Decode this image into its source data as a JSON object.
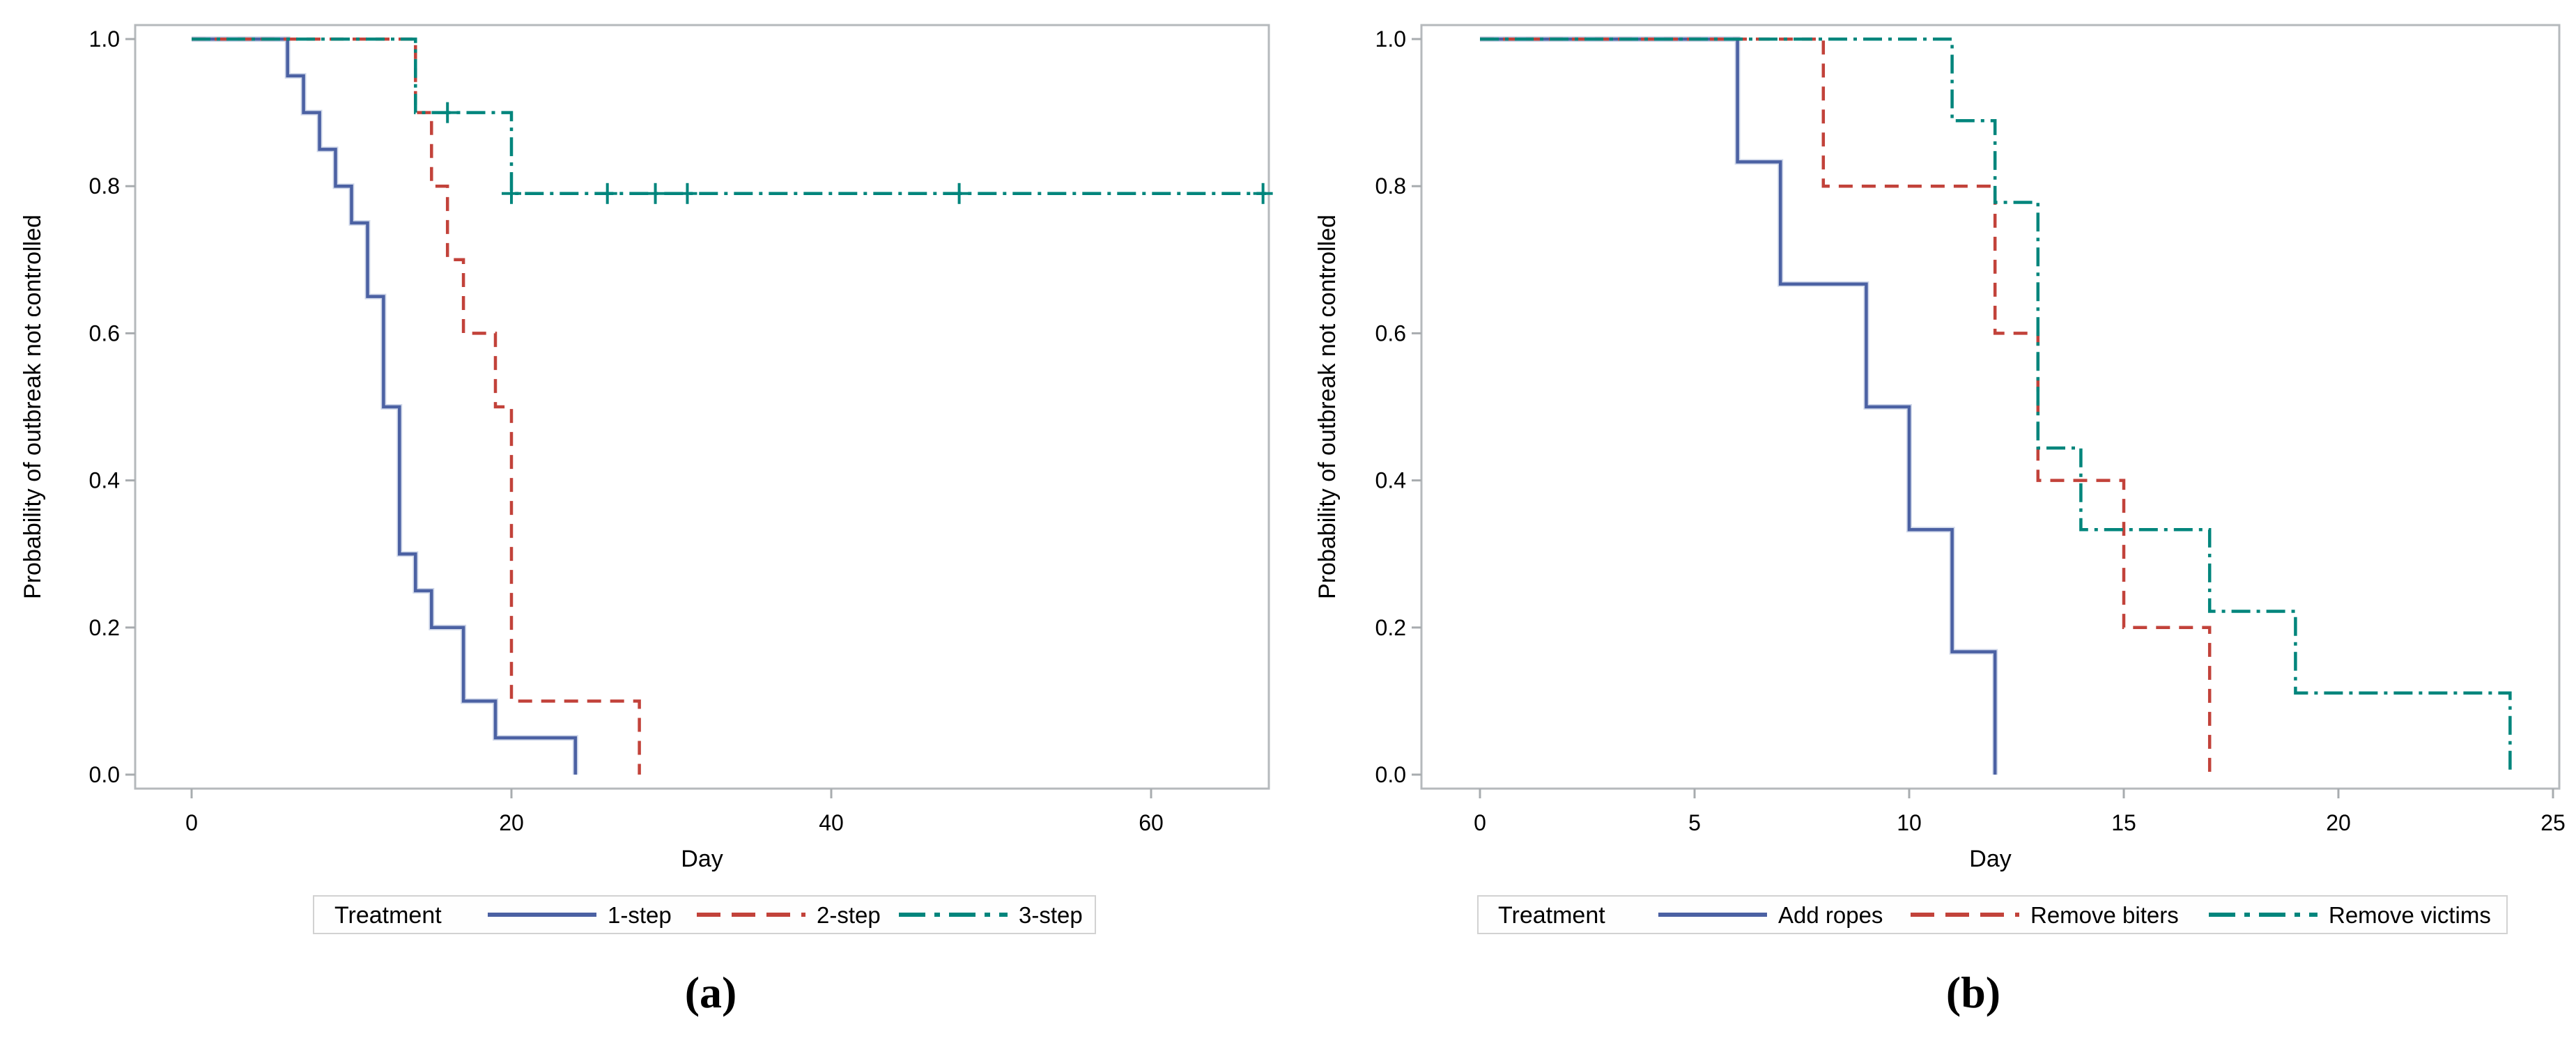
{
  "figure": {
    "description": "Kaplan-Meier curves of probability of outbreak not controlled by treatment",
    "background": "#ffffff",
    "frame_color": "#b5b9bc",
    "tick_color": "#a8acaf"
  },
  "chart_data": [
    {
      "type": "line",
      "subtype": "kaplan-meier-step",
      "panel": "a",
      "caption": "(a)",
      "title": "",
      "xlabel": "Day",
      "ylabel": "Probability of outbreak not controlled",
      "xlim": [
        0,
        67.4
      ],
      "ylim": [
        0,
        1
      ],
      "xticks": [
        0,
        20,
        40,
        60
      ],
      "yticks": [
        "0.0",
        "0.2",
        "0.4",
        "0.6",
        "0.8",
        "1.0"
      ],
      "grid": false,
      "legend_position": "bottom",
      "legend_title": "Treatment",
      "series": [
        {
          "label": "1-step",
          "color": "#4b61a3",
          "halo_color": "#aab8d8",
          "dash": "solid",
          "km": [
            [
              0,
              1.0
            ],
            [
              6,
              0.95
            ],
            [
              7,
              0.9
            ],
            [
              8,
              0.85
            ],
            [
              9,
              0.8
            ],
            [
              10,
              0.75
            ],
            [
              11,
              0.65
            ],
            [
              12,
              0.5
            ],
            [
              13,
              0.3
            ],
            [
              14,
              0.25
            ],
            [
              15,
              0.2
            ],
            [
              17,
              0.1
            ],
            [
              19,
              0.05
            ],
            [
              24,
              0.0
            ]
          ],
          "end_day": 24,
          "censors": []
        },
        {
          "label": "2-step",
          "color": "#c2423a",
          "dash": "dashed",
          "km": [
            [
              0,
              1.0
            ],
            [
              14,
              0.9
            ],
            [
              15,
              0.8
            ],
            [
              16,
              0.7
            ],
            [
              17,
              0.6
            ],
            [
              19,
              0.5
            ],
            [
              20,
              0.1
            ],
            [
              28,
              0.0
            ]
          ],
          "end_day": 28,
          "censors": []
        },
        {
          "label": "3-step",
          "color": "#00857c",
          "dash": "dashdot",
          "km": [
            [
              0,
              1.0
            ],
            [
              14,
              0.9
            ],
            [
              20,
              0.79
            ]
          ],
          "end_day": 67.2,
          "censors": [
            [
              16,
              0.9
            ],
            [
              20,
              0.79
            ],
            [
              26,
              0.79
            ],
            [
              29,
              0.79
            ],
            [
              31,
              0.79
            ],
            [
              48,
              0.79
            ],
            [
              67,
              0.79
            ]
          ]
        }
      ]
    },
    {
      "type": "line",
      "subtype": "kaplan-meier-step",
      "panel": "b",
      "caption": "(b)",
      "title": "",
      "xlabel": "Day",
      "ylabel": "Probability of outbreak not controlled",
      "xlim": [
        0,
        25
      ],
      "ylim": [
        0,
        1
      ],
      "xticks": [
        0,
        5,
        10,
        15,
        20,
        25
      ],
      "yticks": [
        "0.0",
        "0.2",
        "0.4",
        "0.6",
        "0.8",
        "1.0"
      ],
      "grid": false,
      "legend_position": "bottom",
      "legend_title": "Treatment",
      "series": [
        {
          "label": "Add ropes",
          "color": "#4b61a3",
          "halo_color": "#aab8d8",
          "dash": "solid",
          "km": [
            [
              0,
              1.0
            ],
            [
              6,
              0.833
            ],
            [
              7,
              0.667
            ],
            [
              9,
              0.5
            ],
            [
              10,
              0.333
            ],
            [
              11,
              0.167
            ],
            [
              12,
              0.0
            ]
          ],
          "end_day": 12,
          "censors": []
        },
        {
          "label": "Remove biters",
          "color": "#c2423a",
          "dash": "dashed",
          "km": [
            [
              0,
              1.0
            ],
            [
              8,
              0.8
            ],
            [
              12,
              0.6
            ],
            [
              13,
              0.4
            ],
            [
              15,
              0.2
            ],
            [
              17,
              0.0
            ]
          ],
          "end_day": 17,
          "censors": []
        },
        {
          "label": "Remove victims",
          "color": "#00857c",
          "dash": "dashdot",
          "km": [
            [
              0,
              1.0
            ],
            [
              11,
              0.889
            ],
            [
              12,
              0.778
            ],
            [
              13,
              0.444
            ],
            [
              14,
              0.333
            ],
            [
              17,
              0.222
            ],
            [
              19,
              0.111
            ],
            [
              24,
              0.0
            ]
          ],
          "end_day": 24,
          "censors": []
        }
      ]
    }
  ]
}
